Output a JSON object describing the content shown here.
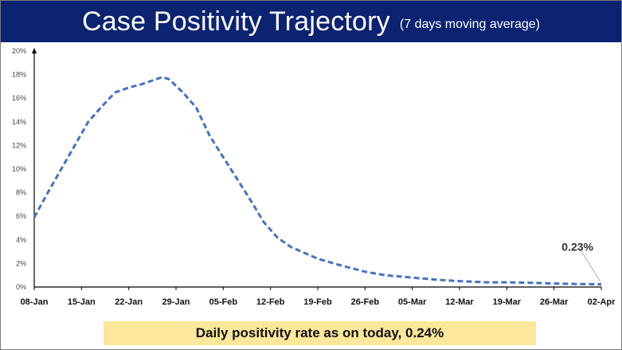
{
  "header": {
    "title": "Case Positivity Trajectory",
    "subtitle": "(7 days moving average)"
  },
  "footer": {
    "text": "Daily positivity rate as on today, 0.24%"
  },
  "chart_data": {
    "type": "line",
    "title": "Case Positivity Trajectory",
    "subtitle": "(7 days moving average)",
    "xlabel": "",
    "ylabel": "",
    "ylim": [
      0,
      20
    ],
    "y_ticks": [
      "0%",
      "2%",
      "4%",
      "6%",
      "8%",
      "10%",
      "12%",
      "14%",
      "16%",
      "18%",
      "20%"
    ],
    "x_ticks": [
      "08-Jan",
      "15-Jan",
      "22-Jan",
      "29-Jan",
      "05-Feb",
      "12-Feb",
      "19-Feb",
      "26-Feb",
      "05-Mar",
      "12-Mar",
      "19-Mar",
      "26-Mar",
      "02-Apr"
    ],
    "grid": false,
    "line_color": "#4472c4",
    "line_style": "dashed",
    "series": [
      {
        "x": [
          "08-Jan",
          "10-Jan",
          "12-Jan",
          "14-Jan",
          "16-Jan",
          "18-Jan",
          "20-Jan",
          "22-Jan",
          "24-Jan",
          "26-Jan",
          "27-Jan",
          "28-Jan",
          "30-Jan",
          "01-Feb",
          "03-Feb",
          "05-Feb",
          "07-Feb",
          "09-Feb",
          "11-Feb",
          "13-Feb",
          "15-Feb",
          "17-Feb",
          "19-Feb",
          "22-Feb",
          "26-Feb",
          "01-Mar",
          "05-Mar",
          "09-Mar",
          "12-Mar",
          "16-Mar",
          "19-Mar",
          "23-Mar",
          "26-Mar",
          "30-Mar",
          "02-Apr"
        ],
        "y": [
          5.9,
          8.0,
          10.0,
          12.0,
          14.0,
          15.3,
          16.5,
          16.9,
          17.2,
          17.6,
          17.8,
          17.6,
          16.5,
          15.2,
          12.8,
          11.0,
          9.2,
          7.4,
          5.5,
          4.2,
          3.4,
          2.9,
          2.4,
          1.9,
          1.3,
          1.0,
          0.8,
          0.6,
          0.5,
          0.4,
          0.4,
          0.35,
          0.3,
          0.25,
          0.23
        ]
      }
    ],
    "annotations": [
      {
        "text": "0.23%",
        "x": "02-Apr",
        "y": 0.23
      }
    ]
  }
}
